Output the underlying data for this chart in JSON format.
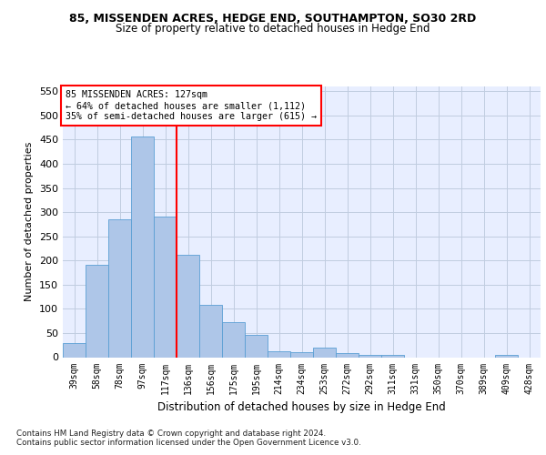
{
  "title1": "85, MISSENDEN ACRES, HEDGE END, SOUTHAMPTON, SO30 2RD",
  "title2": "Size of property relative to detached houses in Hedge End",
  "xlabel": "Distribution of detached houses by size in Hedge End",
  "ylabel": "Number of detached properties",
  "categories": [
    "39sqm",
    "58sqm",
    "78sqm",
    "97sqm",
    "117sqm",
    "136sqm",
    "156sqm",
    "175sqm",
    "195sqm",
    "214sqm",
    "234sqm",
    "253sqm",
    "272sqm",
    "292sqm",
    "311sqm",
    "331sqm",
    "350sqm",
    "370sqm",
    "389sqm",
    "409sqm",
    "428sqm"
  ],
  "values": [
    29,
    192,
    286,
    457,
    291,
    212,
    109,
    73,
    46,
    12,
    10,
    20,
    8,
    5,
    5,
    0,
    0,
    0,
    0,
    5,
    0
  ],
  "bar_color": "#aec6e8",
  "bar_edge_color": "#5a9fd4",
  "red_line_x": 4.5,
  "annotation_line1": "85 MISSENDEN ACRES: 127sqm",
  "annotation_line2": "← 64% of detached houses are smaller (1,112)",
  "annotation_line3": "35% of semi-detached houses are larger (615) →",
  "footnote1": "Contains HM Land Registry data © Crown copyright and database right 2024.",
  "footnote2": "Contains public sector information licensed under the Open Government Licence v3.0.",
  "bg_color": "#e8eeff",
  "grid_color": "#c0cce0",
  "ylim": [
    0,
    560
  ],
  "yticks": [
    0,
    50,
    100,
    150,
    200,
    250,
    300,
    350,
    400,
    450,
    500,
    550
  ]
}
